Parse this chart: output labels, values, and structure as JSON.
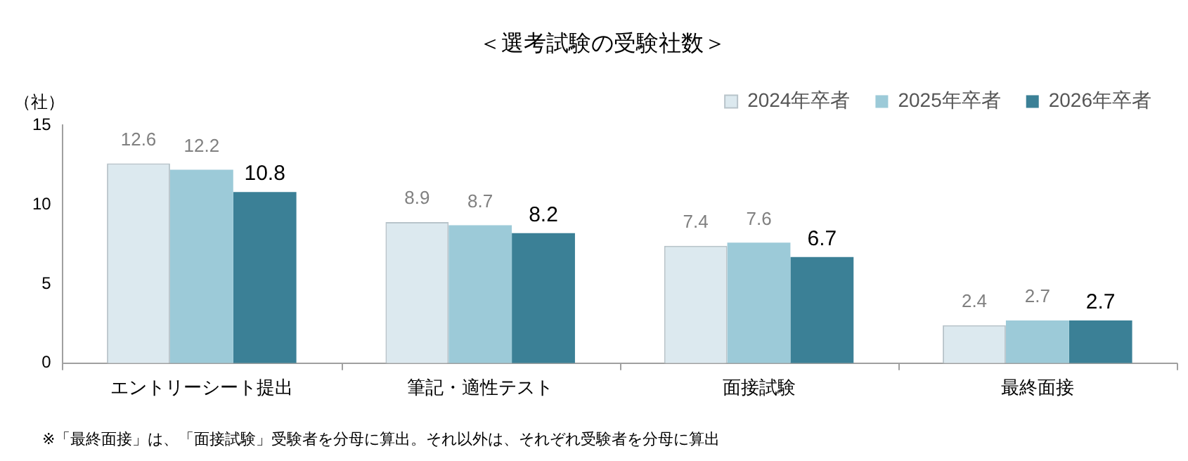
{
  "chart_data": {
    "type": "bar",
    "title": "＜選考試験の受験社数＞",
    "ylabel": "（社）",
    "categories": [
      "エントリーシート提出",
      "筆記・適性テスト",
      "面接試験",
      "最終面接"
    ],
    "series": [
      {
        "name": "2024年卒者",
        "color": "#dce9ef",
        "values": [
          12.6,
          8.9,
          7.4,
          2.4
        ]
      },
      {
        "name": "2025年卒者",
        "color": "#9ccad8",
        "values": [
          12.2,
          8.7,
          7.6,
          2.7
        ]
      },
      {
        "name": "2026年卒者",
        "color": "#3b8096",
        "values": [
          10.8,
          8.2,
          6.7,
          2.7
        ]
      }
    ],
    "ylim": [
      0,
      15
    ],
    "yticks": [
      0,
      5,
      10,
      15
    ],
    "grid": false,
    "legend": "top right",
    "data_labels": true,
    "annotations": [
      "※「最終面接」は、「面接試験」受験者を分母に算出。それ以外は、それぞれ受験者を分母に算出"
    ]
  }
}
